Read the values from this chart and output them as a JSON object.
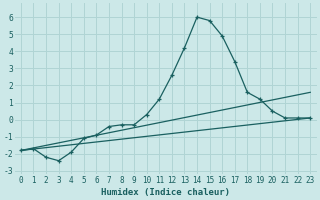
{
  "xlabel": "Humidex (Indice chaleur)",
  "ylabel": "",
  "bg_color": "#cce8e8",
  "grid_color": "#b0d4d4",
  "line_color": "#1a6060",
  "xlim": [
    -0.5,
    23.5
  ],
  "ylim": [
    -3.2,
    6.8
  ],
  "xticks": [
    0,
    1,
    2,
    3,
    4,
    5,
    6,
    7,
    8,
    9,
    10,
    11,
    12,
    13,
    14,
    15,
    16,
    17,
    18,
    19,
    20,
    21,
    22,
    23
  ],
  "yticks": [
    -3,
    -2,
    -1,
    0,
    1,
    2,
    3,
    4,
    5,
    6
  ],
  "line1_x": [
    0,
    1,
    2,
    3,
    4,
    5,
    6,
    7,
    8,
    9,
    10,
    11,
    12,
    13,
    14,
    15,
    16,
    17,
    18,
    19,
    20,
    21,
    22,
    23
  ],
  "line1_y": [
    -1.8,
    -1.7,
    -2.2,
    -2.4,
    -1.9,
    -1.1,
    -0.9,
    -0.4,
    -0.3,
    -0.3,
    0.3,
    1.2,
    2.6,
    4.2,
    6.0,
    5.8,
    4.9,
    3.4,
    1.6,
    1.2,
    0.5,
    0.1,
    0.1,
    0.1
  ],
  "line2_x": [
    0,
    23
  ],
  "line2_y": [
    -1.8,
    1.6
  ],
  "line3_x": [
    0,
    23
  ],
  "line3_y": [
    -1.8,
    0.1
  ],
  "xlabel_fontsize": 6.5,
  "tick_fontsize": 5.5
}
